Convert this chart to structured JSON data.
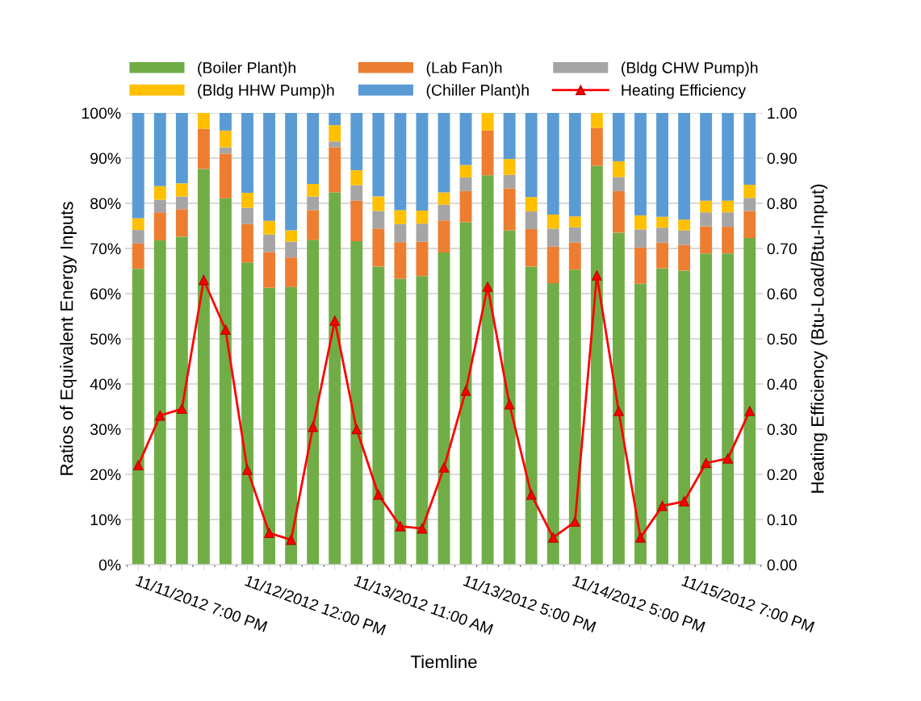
{
  "chart_data": {
    "type": "bar",
    "stacked": true,
    "xlabel": "Tiemline",
    "ylabel": "Ratios of Equivalent Energy Inputs",
    "y2label": "Heating Efficiency (Btu-Load/Btu-Input)",
    "categories": [
      "11/11/2012 7:00 PM",
      null,
      null,
      null,
      null,
      "11/12/2012 12:00 PM",
      null,
      null,
      null,
      null,
      "11/13/2012 11:00 AM",
      null,
      null,
      null,
      null,
      "11/13/2012 5:00 PM",
      null,
      null,
      null,
      null,
      "11/14/2012 5:00 PM",
      null,
      null,
      null,
      null,
      "11/15/2012 7:00 PM",
      null,
      null,
      null
    ],
    "series": [
      {
        "name": "(Boiler Plant)h",
        "color": "#70ad47",
        "values": [
          65.5,
          71.8,
          72.6,
          87.6,
          81.1,
          66.9,
          61.3,
          61.5,
          71.9,
          82.4,
          71.6,
          66.0,
          63.3,
          63.9,
          69.1,
          75.8,
          86.2,
          74.0,
          66.0,
          62.3,
          65.3,
          88.3,
          73.5,
          62.2,
          65.6,
          65.1,
          68.9,
          68.9,
          72.3
        ]
      },
      {
        "name": "(Lab Fan)h",
        "color": "#ed7d31",
        "values": [
          5.6,
          6.2,
          6.1,
          8.9,
          9.9,
          8.5,
          7.9,
          6.5,
          6.6,
          10.0,
          9.0,
          8.4,
          8.1,
          7.6,
          7.1,
          6.9,
          9.9,
          9.3,
          8.3,
          8.1,
          6.0,
          8.4,
          9.2,
          8.0,
          5.7,
          5.7,
          6.0,
          5.9,
          6.0
        ]
      },
      {
        "name": "(Bldg CHW Pump)h",
        "color": "#a5a5a5",
        "values": [
          3.0,
          2.8,
          2.8,
          0,
          1.4,
          3.6,
          3.9,
          3.5,
          3.0,
          1.3,
          3.4,
          3.9,
          4.0,
          4.0,
          3.5,
          3.0,
          0,
          3.0,
          3.9,
          4.0,
          3.4,
          0,
          3.1,
          4.0,
          3.3,
          3.2,
          3.1,
          3.2,
          2.9
        ]
      },
      {
        "name": "(Bldg HHW Pump)h",
        "color": "#ffc000",
        "values": [
          2.6,
          3.0,
          2.9,
          3.5,
          3.7,
          3.3,
          3.0,
          2.5,
          2.8,
          3.6,
          3.3,
          3.2,
          3.1,
          2.9,
          2.7,
          2.8,
          3.9,
          3.5,
          3.2,
          3.1,
          2.4,
          3.3,
          3.5,
          3.1,
          2.4,
          2.4,
          2.6,
          2.6,
          2.9
        ]
      },
      {
        "name": "(Chiller Plant)h",
        "color": "#5b9bd5",
        "values": [
          23.3,
          16.2,
          15.6,
          0,
          3.9,
          17.7,
          23.9,
          26.0,
          15.7,
          2.7,
          12.7,
          18.5,
          21.5,
          21.6,
          17.6,
          11.5,
          0,
          10.2,
          18.6,
          22.5,
          22.9,
          0,
          10.7,
          22.7,
          23.0,
          23.6,
          19.4,
          19.4,
          15.9
        ]
      },
      {
        "name": "Heating Efficiency",
        "type": "line",
        "axis": "y2",
        "color": "#ff0000",
        "marker": "triangle",
        "values": [
          0.22,
          0.33,
          0.345,
          0.63,
          0.52,
          0.21,
          0.07,
          0.055,
          0.305,
          0.54,
          0.3,
          0.155,
          0.085,
          0.08,
          0.215,
          0.385,
          0.615,
          0.355,
          0.155,
          0.06,
          0.095,
          0.64,
          0.34,
          0.06,
          0.13,
          0.14,
          0.225,
          0.235,
          0.34
        ]
      }
    ],
    "ylim": [
      0,
      100
    ],
    "yticks": [
      {
        "value": 0,
        "label": "0%"
      },
      {
        "value": 10,
        "label": "10%"
      },
      {
        "value": 20,
        "label": "20%"
      },
      {
        "value": 30,
        "label": "30%"
      },
      {
        "value": 40,
        "label": "40%"
      },
      {
        "value": 50,
        "label": "50%"
      },
      {
        "value": 60,
        "label": "60%"
      },
      {
        "value": 70,
        "label": "70%"
      },
      {
        "value": 80,
        "label": "80%"
      },
      {
        "value": 90,
        "label": "90%"
      },
      {
        "value": 100,
        "label": "100%"
      }
    ],
    "y2lim": [
      0,
      1
    ],
    "y2ticks": [
      {
        "value": 0,
        "label": "0.00"
      },
      {
        "value": 0.1,
        "label": "0.10"
      },
      {
        "value": 0.2,
        "label": "0.20"
      },
      {
        "value": 0.3,
        "label": "0.30"
      },
      {
        "value": 0.4,
        "label": "0.40"
      },
      {
        "value": 0.5,
        "label": "0.50"
      },
      {
        "value": 0.6,
        "label": "0.60"
      },
      {
        "value": 0.7,
        "label": "0.70"
      },
      {
        "value": 0.8,
        "label": "0.80"
      },
      {
        "value": 0.9,
        "label": "0.90"
      },
      {
        "value": 1,
        "label": "1.00"
      }
    ],
    "grid": "y",
    "legend": "top"
  }
}
